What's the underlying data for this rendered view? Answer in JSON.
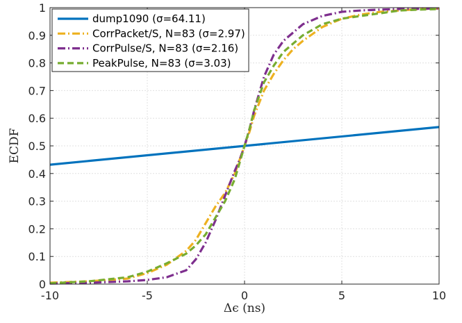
{
  "chart_data": {
    "type": "line",
    "xlabel": "Δϵ (ns)",
    "ylabel": "ECDF",
    "xlim": [
      -10,
      10
    ],
    "ylim": [
      0,
      1
    ],
    "xticks": [
      "-10",
      "-5",
      "0",
      "5",
      "10"
    ],
    "yticks": [
      "0",
      "0.1",
      "0.2",
      "0.3",
      "0.4",
      "0.5",
      "0.6",
      "0.7",
      "0.8",
      "0.9",
      "1"
    ],
    "grid": true,
    "legend_position": "top-left",
    "series": [
      {
        "name": "dump1090 (σ=64.11)",
        "color": "#0072bd",
        "style": "solid",
        "x": [
          -10,
          10
        ],
        "y": [
          0.432,
          0.568
        ]
      },
      {
        "name": "CorrPacket/S, N=83 (σ=2.97)",
        "color": "#edb120",
        "style": "dashdot",
        "x": [
          -10,
          -8,
          -6,
          -5,
          -4,
          -3,
          -2.5,
          -2,
          -1.5,
          -1,
          -0.5,
          -0.25,
          0,
          0.25,
          0.5,
          1,
          1.5,
          2,
          2.5,
          3,
          4,
          5,
          6,
          7,
          8,
          9,
          10
        ],
        "y": [
          0.005,
          0.01,
          0.02,
          0.04,
          0.07,
          0.12,
          0.16,
          0.22,
          0.28,
          0.33,
          0.4,
          0.45,
          0.5,
          0.55,
          0.61,
          0.7,
          0.76,
          0.81,
          0.85,
          0.88,
          0.93,
          0.96,
          0.975,
          0.985,
          0.99,
          0.995,
          0.997
        ]
      },
      {
        "name": "CorrPulse/S, N=83 (σ=2.16)",
        "color": "#7e2f8e",
        "style": "dashdot",
        "x": [
          -10,
          -8,
          -6,
          -5,
          -4,
          -3,
          -2.5,
          -2,
          -1.5,
          -1,
          -0.5,
          -0.25,
          0,
          0.25,
          0.5,
          1,
          1.5,
          2,
          2.5,
          3,
          4,
          5,
          6,
          7,
          8,
          9,
          10
        ],
        "y": [
          0.002,
          0.005,
          0.01,
          0.015,
          0.025,
          0.05,
          0.09,
          0.15,
          0.23,
          0.32,
          0.41,
          0.45,
          0.5,
          0.56,
          0.63,
          0.75,
          0.83,
          0.88,
          0.91,
          0.94,
          0.97,
          0.985,
          0.99,
          0.993,
          0.995,
          0.996,
          0.997
        ]
      },
      {
        "name": "PeakPulse, N=83 (σ=3.03)",
        "color": "#77ac30",
        "style": "dashed",
        "x": [
          -10,
          -8,
          -6,
          -5,
          -4,
          -3,
          -2.5,
          -2,
          -1.5,
          -1,
          -0.5,
          -0.25,
          0,
          0.25,
          0.5,
          1,
          1.5,
          2,
          2.5,
          3,
          4,
          5,
          6,
          7,
          8,
          9,
          10
        ],
        "y": [
          0.003,
          0.01,
          0.025,
          0.045,
          0.075,
          0.11,
          0.14,
          0.18,
          0.24,
          0.3,
          0.38,
          0.44,
          0.5,
          0.56,
          0.63,
          0.73,
          0.79,
          0.84,
          0.87,
          0.9,
          0.94,
          0.96,
          0.97,
          0.98,
          0.99,
          0.993,
          0.995
        ]
      }
    ]
  }
}
